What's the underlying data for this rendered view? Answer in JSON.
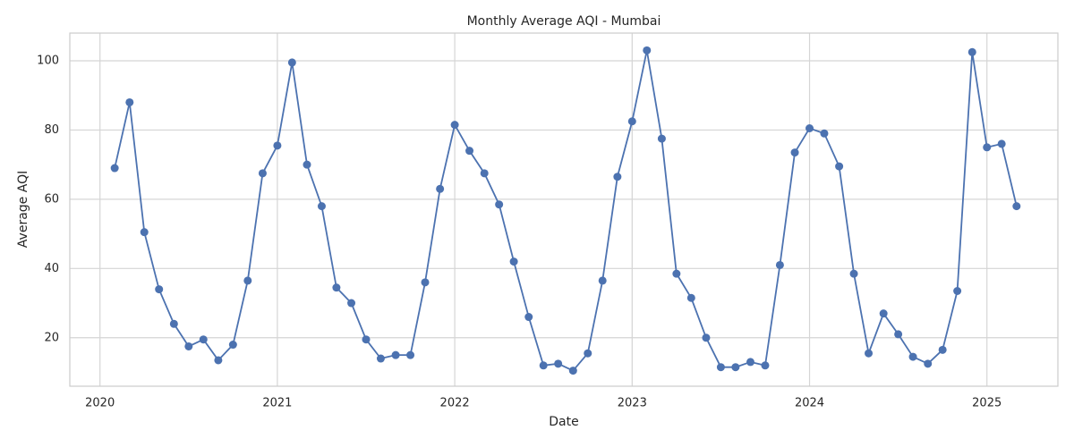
{
  "chart_data": {
    "type": "line",
    "title": "Monthly Average AQI - Mumbai",
    "xlabel": "Date",
    "ylabel": "Average AQI",
    "x": [
      2020.083,
      2020.167,
      2020.25,
      2020.333,
      2020.417,
      2020.5,
      2020.583,
      2020.667,
      2020.75,
      2020.833,
      2020.917,
      2021.0,
      2021.083,
      2021.167,
      2021.25,
      2021.333,
      2021.417,
      2021.5,
      2021.583,
      2021.667,
      2021.75,
      2021.833,
      2021.917,
      2022.0,
      2022.083,
      2022.167,
      2022.25,
      2022.333,
      2022.417,
      2022.5,
      2022.583,
      2022.667,
      2022.75,
      2022.833,
      2022.917,
      2023.0,
      2023.083,
      2023.167,
      2023.25,
      2023.333,
      2023.417,
      2023.5,
      2023.583,
      2023.667,
      2023.75,
      2023.833,
      2023.917,
      2024.0,
      2024.083,
      2024.167,
      2024.25,
      2024.333,
      2024.417,
      2024.5,
      2024.583,
      2024.667,
      2024.75,
      2024.833,
      2024.917,
      2025.0,
      2025.083,
      2025.167
    ],
    "series": [
      {
        "name": "Average AQI",
        "color": "#4c72b0",
        "values": [
          69,
          88,
          50.5,
          34,
          24,
          17.5,
          19.5,
          13.5,
          18,
          36.5,
          67.5,
          75.5,
          99.5,
          70,
          58,
          34.5,
          30,
          19.5,
          14,
          15,
          15,
          36,
          63,
          81.5,
          74,
          67.5,
          58.5,
          42,
          26,
          12,
          12.5,
          10.5,
          15.5,
          36.5,
          66.5,
          82.5,
          103,
          77.5,
          38.5,
          31.5,
          20,
          11.5,
          11.5,
          13,
          12,
          41,
          73.5,
          80.5,
          79,
          69.5,
          38.5,
          15.5,
          27,
          21,
          14.5,
          12.5,
          16.5,
          33.5,
          102.5,
          75,
          76,
          58
        ]
      }
    ],
    "xlim": [
      2019.83,
      2025.4
    ],
    "xticks": [
      2020,
      2021,
      2022,
      2023,
      2024,
      2025
    ],
    "ylim": [
      6,
      108
    ],
    "yticks": [
      20,
      40,
      60,
      80,
      100
    ],
    "grid": true
  }
}
